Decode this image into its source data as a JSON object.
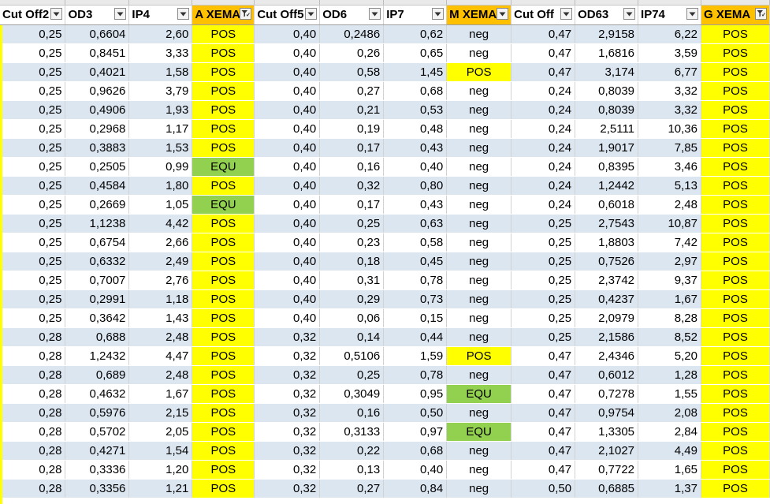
{
  "colors": {
    "header_highlight": "#ffc000",
    "pos_fill": "#ffff00",
    "equ_fill": "#92d050",
    "band_fill": "#dce6f1"
  },
  "headers": [
    {
      "label": "Cut Off2",
      "highlight": false,
      "filter": "dropdown"
    },
    {
      "label": "OD3",
      "highlight": false,
      "filter": "dropdown"
    },
    {
      "label": "IP4",
      "highlight": false,
      "filter": "dropdown"
    },
    {
      "label": "A XEMA",
      "highlight": true,
      "filter": "funnel"
    },
    {
      "label": "Cut Off5",
      "highlight": false,
      "filter": "dropdown"
    },
    {
      "label": "OD6",
      "highlight": false,
      "filter": "dropdown"
    },
    {
      "label": "IP7",
      "highlight": false,
      "filter": "dropdown"
    },
    {
      "label": "M XEMA",
      "highlight": true,
      "filter": "dropdown"
    },
    {
      "label": "Cut Off",
      "highlight": false,
      "filter": "dropdown"
    },
    {
      "label": "OD63",
      "highlight": false,
      "filter": "dropdown"
    },
    {
      "label": "IP74",
      "highlight": false,
      "filter": "dropdown"
    },
    {
      "label": "G XEMA",
      "highlight": true,
      "filter": "funnel"
    }
  ],
  "rows": [
    [
      "0,25",
      "0,6604",
      "2,60",
      "POS",
      "0,40",
      "0,2486",
      "0,62",
      "neg",
      "0,47",
      "2,9158",
      "6,22",
      "POS"
    ],
    [
      "0,25",
      "0,8451",
      "3,33",
      "POS",
      "0,40",
      "0,26",
      "0,65",
      "neg",
      "0,47",
      "1,6816",
      "3,59",
      "POS"
    ],
    [
      "0,25",
      "0,4021",
      "1,58",
      "POS",
      "0,40",
      "0,58",
      "1,45",
      "POS",
      "0,47",
      "3,174",
      "6,77",
      "POS"
    ],
    [
      "0,25",
      "0,9626",
      "3,79",
      "POS",
      "0,40",
      "0,27",
      "0,68",
      "neg",
      "0,24",
      "0,8039",
      "3,32",
      "POS"
    ],
    [
      "0,25",
      "0,4906",
      "1,93",
      "POS",
      "0,40",
      "0,21",
      "0,53",
      "neg",
      "0,24",
      "0,8039",
      "3,32",
      "POS"
    ],
    [
      "0,25",
      "0,2968",
      "1,17",
      "POS",
      "0,40",
      "0,19",
      "0,48",
      "neg",
      "0,24",
      "2,5111",
      "10,36",
      "POS"
    ],
    [
      "0,25",
      "0,3883",
      "1,53",
      "POS",
      "0,40",
      "0,17",
      "0,43",
      "neg",
      "0,24",
      "1,9017",
      "7,85",
      "POS"
    ],
    [
      "0,25",
      "0,2505",
      "0,99",
      "EQU",
      "0,40",
      "0,16",
      "0,40",
      "neg",
      "0,24",
      "0,8395",
      "3,46",
      "POS"
    ],
    [
      "0,25",
      "0,4584",
      "1,80",
      "POS",
      "0,40",
      "0,32",
      "0,80",
      "neg",
      "0,24",
      "1,2442",
      "5,13",
      "POS"
    ],
    [
      "0,25",
      "0,2669",
      "1,05",
      "EQU",
      "0,40",
      "0,17",
      "0,43",
      "neg",
      "0,24",
      "0,6018",
      "2,48",
      "POS"
    ],
    [
      "0,25",
      "1,1238",
      "4,42",
      "POS",
      "0,40",
      "0,25",
      "0,63",
      "neg",
      "0,25",
      "2,7543",
      "10,87",
      "POS"
    ],
    [
      "0,25",
      "0,6754",
      "2,66",
      "POS",
      "0,40",
      "0,23",
      "0,58",
      "neg",
      "0,25",
      "1,8803",
      "7,42",
      "POS"
    ],
    [
      "0,25",
      "0,6332",
      "2,49",
      "POS",
      "0,40",
      "0,18",
      "0,45",
      "neg",
      "0,25",
      "0,7526",
      "2,97",
      "POS"
    ],
    [
      "0,25",
      "0,7007",
      "2,76",
      "POS",
      "0,40",
      "0,31",
      "0,78",
      "neg",
      "0,25",
      "2,3742",
      "9,37",
      "POS"
    ],
    [
      "0,25",
      "0,2991",
      "1,18",
      "POS",
      "0,40",
      "0,29",
      "0,73",
      "neg",
      "0,25",
      "0,4237",
      "1,67",
      "POS"
    ],
    [
      "0,25",
      "0,3642",
      "1,43",
      "POS",
      "0,40",
      "0,06",
      "0,15",
      "neg",
      "0,25",
      "2,0979",
      "8,28",
      "POS"
    ],
    [
      "0,28",
      "0,688",
      "2,48",
      "POS",
      "0,32",
      "0,14",
      "0,44",
      "neg",
      "0,25",
      "2,1586",
      "8,52",
      "POS"
    ],
    [
      "0,28",
      "1,2432",
      "4,47",
      "POS",
      "0,32",
      "0,5106",
      "1,59",
      "POS",
      "0,47",
      "2,4346",
      "5,20",
      "POS"
    ],
    [
      "0,28",
      "0,689",
      "2,48",
      "POS",
      "0,32",
      "0,25",
      "0,78",
      "neg",
      "0,47",
      "0,6012",
      "1,28",
      "POS"
    ],
    [
      "0,28",
      "0,4632",
      "1,67",
      "POS",
      "0,32",
      "0,3049",
      "0,95",
      "EQU",
      "0,47",
      "0,7278",
      "1,55",
      "POS"
    ],
    [
      "0,28",
      "0,5976",
      "2,15",
      "POS",
      "0,32",
      "0,16",
      "0,50",
      "neg",
      "0,47",
      "0,9754",
      "2,08",
      "POS"
    ],
    [
      "0,28",
      "0,5702",
      "2,05",
      "POS",
      "0,32",
      "0,3133",
      "0,97",
      "EQU",
      "0,47",
      "1,3305",
      "2,84",
      "POS"
    ],
    [
      "0,28",
      "0,4271",
      "1,54",
      "POS",
      "0,32",
      "0,22",
      "0,68",
      "neg",
      "0,47",
      "2,1027",
      "4,49",
      "POS"
    ],
    [
      "0,28",
      "0,3336",
      "1,20",
      "POS",
      "0,32",
      "0,13",
      "0,40",
      "neg",
      "0,47",
      "0,7722",
      "1,65",
      "POS"
    ],
    [
      "0,28",
      "0,3356",
      "1,21",
      "POS",
      "0,32",
      "0,27",
      "0,84",
      "neg",
      "0,50",
      "0,6885",
      "1,37",
      "POS"
    ]
  ]
}
